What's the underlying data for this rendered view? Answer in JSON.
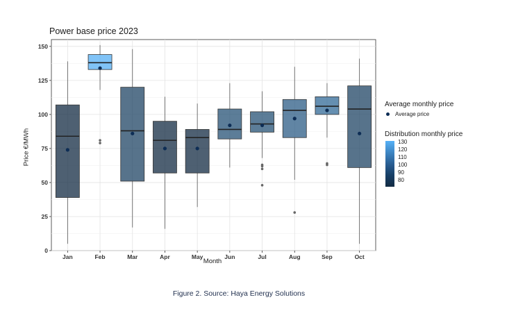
{
  "chart_data": {
    "type": "box",
    "title": "Power base price 2023",
    "xlabel": "Month",
    "ylabel": "Price €/MWh",
    "ylim": [
      0,
      155
    ],
    "yticks": [
      0,
      25,
      50,
      75,
      100,
      125,
      150
    ],
    "categories": [
      "Jan",
      "Feb",
      "Mar",
      "Apr",
      "May",
      "Jun",
      "Jul",
      "Aug",
      "Sep",
      "Oct"
    ],
    "boxes": [
      {
        "month": "Jan",
        "min": 5,
        "q1": 39,
        "median": 84,
        "q3": 107,
        "max": 139,
        "mean": 74,
        "outliers": []
      },
      {
        "month": "Feb",
        "min": 118,
        "q1": 133,
        "median": 138,
        "q3": 144,
        "max": 151,
        "mean": 134,
        "outliers": [
          79,
          81
        ]
      },
      {
        "month": "Mar",
        "min": 17,
        "q1": 51,
        "median": 88,
        "q3": 120,
        "max": 148,
        "mean": 86,
        "outliers": []
      },
      {
        "month": "Apr",
        "min": 16,
        "q1": 57,
        "median": 81,
        "q3": 95,
        "max": 113,
        "mean": 75,
        "outliers": []
      },
      {
        "month": "May",
        "min": 32,
        "q1": 57,
        "median": 83,
        "q3": 89,
        "max": 108,
        "mean": 75,
        "outliers": []
      },
      {
        "month": "Jun",
        "min": 61,
        "q1": 82,
        "median": 89,
        "q3": 104,
        "max": 123,
        "mean": 92,
        "outliers": []
      },
      {
        "month": "Jul",
        "min": 68,
        "q1": 87,
        "median": 93,
        "q3": 102,
        "max": 117,
        "mean": 92,
        "outliers": [
          48,
          60,
          62,
          63
        ]
      },
      {
        "month": "Aug",
        "min": 52,
        "q1": 83,
        "median": 103,
        "q3": 111,
        "max": 135,
        "mean": 97,
        "outliers": [
          28
        ]
      },
      {
        "month": "Sep",
        "min": 83,
        "q1": 100,
        "median": 106,
        "q3": 113,
        "max": 123,
        "mean": 103,
        "outliers": [
          63,
          64
        ]
      },
      {
        "month": "Oct",
        "min": 5,
        "q1": 61,
        "median": 104,
        "q3": 121,
        "max": 141,
        "mean": 86,
        "outliers": []
      }
    ],
    "fill_by": "mean",
    "colorbar": {
      "min": 75,
      "max": 135,
      "ticks": [
        "130",
        "120",
        "110",
        "100",
        "90",
        "80"
      ],
      "low_color": "#132b43",
      "high_color": "#56b1f7"
    },
    "legend": {
      "mean_title": "Average monthly price",
      "mean_item": "Average price",
      "fill_title": "Distribution monthly price",
      "placement": "right"
    },
    "grid": true
  },
  "caption": "Figure 2. Source: Haya Energy Solutions"
}
